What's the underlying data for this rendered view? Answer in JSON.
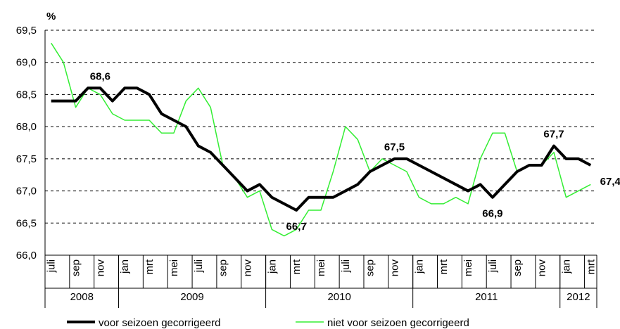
{
  "chart_data": {
    "type": "line",
    "y_unit": "%",
    "x": [
      "2008-07",
      "2008-08",
      "2008-09",
      "2008-10",
      "2008-11",
      "2008-12",
      "2009-01",
      "2009-02",
      "2009-03",
      "2009-04",
      "2009-05",
      "2009-06",
      "2009-07",
      "2009-08",
      "2009-09",
      "2009-10",
      "2009-11",
      "2009-12",
      "2010-01",
      "2010-02",
      "2010-03",
      "2010-04",
      "2010-05",
      "2010-06",
      "2010-07",
      "2010-08",
      "2010-09",
      "2010-10",
      "2010-11",
      "2010-12",
      "2011-01",
      "2011-02",
      "2011-03",
      "2011-04",
      "2011-05",
      "2011-06",
      "2011-07",
      "2011-08",
      "2011-09",
      "2011-10",
      "2011-11",
      "2011-12",
      "2012-01",
      "2012-02",
      "2012-03"
    ],
    "xticks": [
      {
        "value": "2008-07",
        "label": "juli"
      },
      {
        "value": "2008-09",
        "label": "sep"
      },
      {
        "value": "2008-11",
        "label": "nov"
      },
      {
        "value": "2009-01",
        "label": "jan"
      },
      {
        "value": "2009-03",
        "label": "mrt"
      },
      {
        "value": "2009-05",
        "label": "mei"
      },
      {
        "value": "2009-07",
        "label": "juli"
      },
      {
        "value": "2009-09",
        "label": "sep"
      },
      {
        "value": "2009-11",
        "label": "nov"
      },
      {
        "value": "2010-01",
        "label": "jan"
      },
      {
        "value": "2010-03",
        "label": "mrt"
      },
      {
        "value": "2010-05",
        "label": "mei"
      },
      {
        "value": "2010-07",
        "label": "juli"
      },
      {
        "value": "2010-09",
        "label": "sep"
      },
      {
        "value": "2010-11",
        "label": "nov"
      },
      {
        "value": "2011-01",
        "label": "jan"
      },
      {
        "value": "2011-03",
        "label": "mrt"
      },
      {
        "value": "2011-05",
        "label": "mei"
      },
      {
        "value": "2011-07",
        "label": "juli"
      },
      {
        "value": "2011-09",
        "label": "sep"
      },
      {
        "value": "2011-11",
        "label": "nov"
      },
      {
        "value": "2012-01",
        "label": "jan"
      },
      {
        "value": "2012-03",
        "label": "mrt"
      }
    ],
    "years": [
      "2008",
      "2009",
      "2010",
      "2011",
      "2012"
    ],
    "ylim": [
      66.0,
      69.5
    ],
    "yticks": [
      {
        "value": 66.0,
        "label": "66,0"
      },
      {
        "value": 66.5,
        "label": "66,5"
      },
      {
        "value": 67.0,
        "label": "67,0"
      },
      {
        "value": 67.5,
        "label": "67,5"
      },
      {
        "value": 68.0,
        "label": "68,0"
      },
      {
        "value": 68.5,
        "label": "68,5"
      },
      {
        "value": 69.0,
        "label": "69,0"
      },
      {
        "value": 69.5,
        "label": "69,5"
      }
    ],
    "grid": true,
    "series": [
      {
        "name": "voor seizoen gecorrigeerd",
        "color": "#000000",
        "values": [
          68.4,
          68.4,
          68.4,
          68.6,
          68.6,
          68.4,
          68.6,
          68.6,
          68.5,
          68.2,
          68.1,
          68.0,
          67.7,
          67.6,
          67.4,
          67.2,
          67.0,
          67.1,
          66.9,
          66.8,
          66.7,
          66.9,
          66.9,
          66.9,
          67.0,
          67.1,
          67.3,
          67.4,
          67.5,
          67.5,
          67.4,
          67.3,
          67.2,
          67.1,
          67.0,
          67.1,
          66.9,
          67.1,
          67.3,
          67.4,
          67.4,
          67.7,
          67.5,
          67.5,
          67.4
        ],
        "value_labels": [
          null,
          null,
          null,
          null,
          "68,6",
          null,
          null,
          null,
          null,
          null,
          null,
          null,
          null,
          null,
          null,
          null,
          null,
          null,
          null,
          null,
          "66,7",
          null,
          null,
          null,
          null,
          null,
          null,
          null,
          "67,5",
          null,
          null,
          null,
          null,
          null,
          null,
          null,
          "66,9",
          null,
          null,
          null,
          null,
          "67,7",
          null,
          null,
          "67,4"
        ]
      },
      {
        "name": "niet voor seizoen gecorrigeerd",
        "color": "#33ee33",
        "values": [
          69.3,
          69.0,
          68.3,
          68.6,
          68.5,
          68.2,
          68.1,
          68.1,
          68.1,
          67.9,
          67.9,
          68.4,
          68.6,
          68.3,
          67.4,
          67.2,
          66.9,
          67.0,
          66.4,
          66.3,
          66.4,
          66.7,
          66.7,
          67.3,
          68.0,
          67.8,
          67.3,
          67.5,
          67.4,
          67.3,
          66.9,
          66.8,
          66.8,
          66.9,
          66.8,
          67.5,
          67.9,
          67.9,
          67.3,
          67.4,
          67.4,
          67.6,
          66.9,
          67.0,
          67.1
        ]
      }
    ]
  }
}
